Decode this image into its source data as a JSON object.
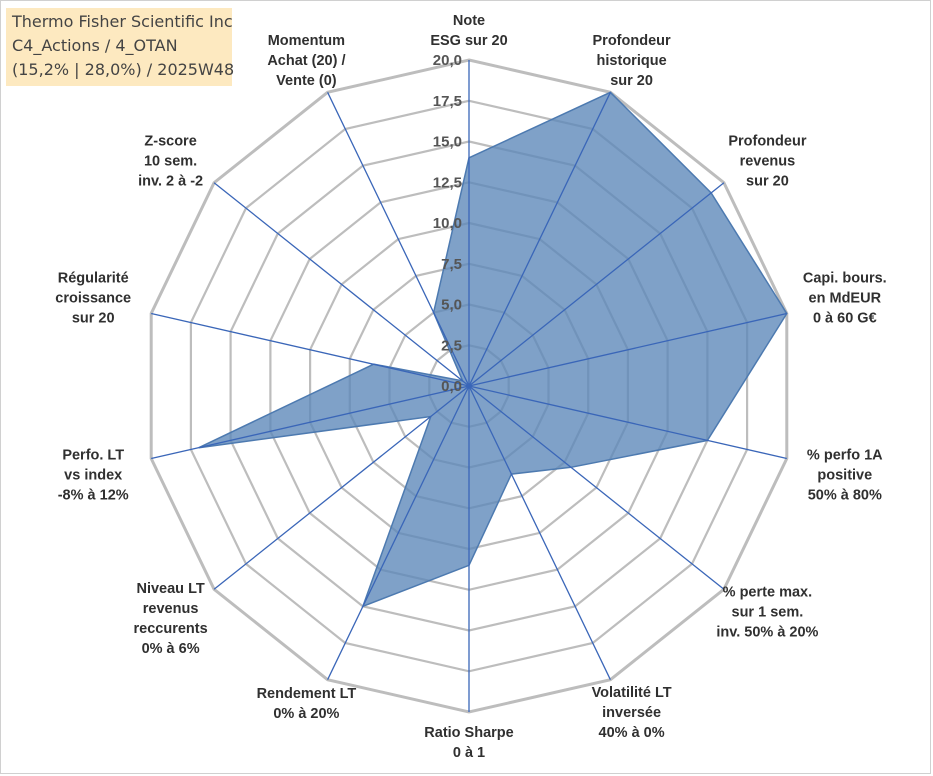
{
  "info_box": {
    "line1": "Thermo Fisher Scientific Inc",
    "line2": "C4_Actions / 4_OTAN",
    "line3": "(15,2% | 28,0%) / 2025W48"
  },
  "colors": {
    "fill": "#5b86b8",
    "fill_opacity": 0.78,
    "series_line": "#4d7ab0",
    "spoke": "#3a66b8",
    "grid": "#bdbdbd",
    "info_bg": "#fde9c0"
  },
  "chart_data": {
    "type": "radar",
    "title": "",
    "rlim": [
      0,
      20
    ],
    "ticks": [
      "0,0",
      "2,5",
      "5,0",
      "7,5",
      "10,0",
      "12,5",
      "15,0",
      "17,5",
      "20,0"
    ],
    "categories": [
      [
        "Note",
        "ESG sur 20"
      ],
      [
        "Profondeur",
        "historique",
        "sur 20"
      ],
      [
        "Profondeur",
        "revenus",
        "sur 20"
      ],
      [
        "Capi. bours.",
        "en MdEUR",
        "0 à 60 G€"
      ],
      [
        "% perfo 1A",
        "positive",
        "50% à 80%"
      ],
      [
        "% perte max.",
        "sur 1 sem.",
        "inv. 50% à 20%"
      ],
      [
        "Volatilité LT",
        "inversée",
        "40% à 0%"
      ],
      [
        "Ratio Sharpe",
        "0 à 1"
      ],
      [
        "Rendement LT",
        "0% à 20%"
      ],
      [
        "Niveau LT",
        "revenus",
        "reccurents",
        "0% à 6%"
      ],
      [
        "Perfo. LT",
        "vs index",
        "-8% à 12%"
      ],
      [
        "Régularité",
        "croissance",
        "sur 20"
      ],
      [
        "Z-score",
        "10 sem.",
        "inv. 2 à -2"
      ],
      [
        "Momentum",
        "Achat (20) /",
        "Vente (0)"
      ]
    ],
    "series": [
      {
        "name": "Thermo Fisher Scientific Inc",
        "values": [
          14.0,
          20.0,
          19.0,
          20.0,
          15.0,
          8.0,
          6.0,
          11.0,
          15.0,
          3.0,
          17.0,
          6.0,
          0.5,
          5.0
        ]
      }
    ]
  }
}
